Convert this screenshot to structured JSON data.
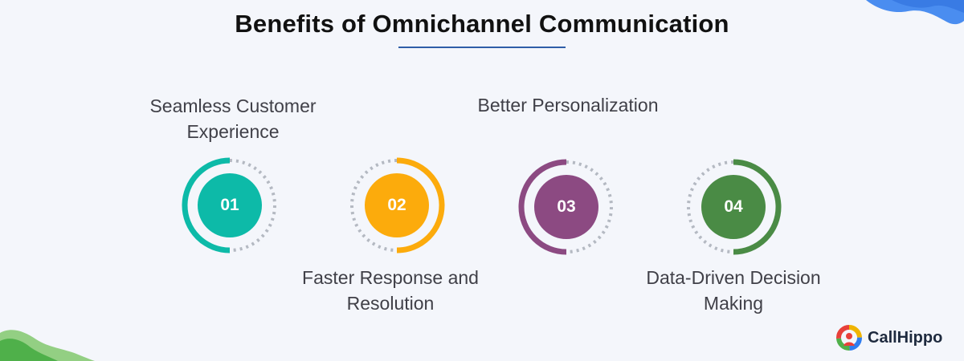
{
  "title": "Benefits of Omnichannel Communication",
  "steps": [
    {
      "number": "01",
      "label": "Seamless Customer Experience",
      "color": "#0dbaa8"
    },
    {
      "number": "02",
      "label": "Faster Response and Resolution",
      "color": "#fcab0c"
    },
    {
      "number": "03",
      "label": "Better Personalization",
      "color": "#8c4a82"
    },
    {
      "number": "04",
      "label": "Data-Driven Decision Making",
      "color": "#4a8b45"
    }
  ],
  "brand": {
    "name": "CallHippo"
  },
  "colors": {
    "background": "#f4f6fb",
    "underline": "#2f5ea8",
    "dots": "#b4b9c2"
  }
}
